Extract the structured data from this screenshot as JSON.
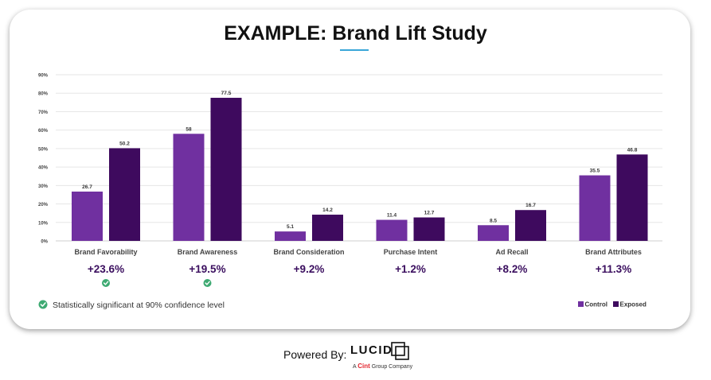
{
  "title": "EXAMPLE: Brand Lift Study",
  "colors": {
    "control": "#7030a0",
    "exposed": "#3e0a5e",
    "lift_text": "#3b0f5f",
    "check": "#3eaa72",
    "accent_underline": "#3aa6d8"
  },
  "chart_data": {
    "type": "bar",
    "categories": [
      "Brand Favorability",
      "Brand Awareness",
      "Brand Consideration",
      "Purchase Intent",
      "Ad Recall",
      "Brand Attributes"
    ],
    "series": [
      {
        "name": "Control",
        "values": [
          26.7,
          58,
          5.1,
          11.4,
          8.5,
          35.5
        ]
      },
      {
        "name": "Exposed",
        "values": [
          50.2,
          77.5,
          14.2,
          12.7,
          16.7,
          46.8
        ]
      }
    ],
    "value_labels": {
      "Control": [
        "26.7",
        "58",
        "5.1",
        "11.4",
        "8.5",
        "35.5"
      ],
      "Exposed": [
        "50.2",
        "77.5",
        "14.2",
        "12.7",
        "16.7",
        "46.8"
      ]
    },
    "lifts": [
      "+23.6%",
      "+19.5%",
      "+9.2%",
      "+1.2%",
      "+8.2%",
      "+11.3%"
    ],
    "significant": [
      true,
      true,
      false,
      false,
      false,
      false
    ],
    "y_ticks": [
      "0%",
      "10%",
      "20%",
      "30%",
      "40%",
      "50%",
      "60%",
      "70%",
      "80%",
      "90%"
    ],
    "ylim": [
      0,
      90
    ],
    "grid": true,
    "legend_position": "bottom-right"
  },
  "significance_note": "Statistically significant at 90% confidence level",
  "footer": {
    "powered_by": "Powered By:",
    "brand": "LUCID",
    "sub_prefix": "A",
    "sub_brand": "Cint",
    "sub_suffix": "Group Company"
  }
}
